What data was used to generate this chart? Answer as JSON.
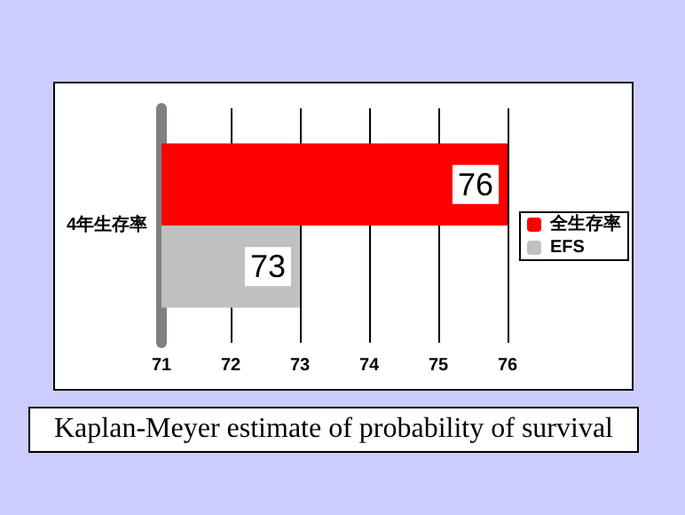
{
  "chart_data": {
    "type": "bar",
    "orientation": "horizontal",
    "categories": [
      "4年生存率"
    ],
    "series": [
      {
        "name": "全生存率",
        "color": "#ff0000",
        "values": [
          76
        ]
      },
      {
        "name": "EFS",
        "color": "#c0c0c0",
        "values": [
          73
        ]
      }
    ],
    "xlim": [
      71,
      76
    ],
    "xticks": [
      71,
      72,
      73,
      74,
      75,
      76
    ],
    "grid": "x",
    "legend": "right",
    "data_labels": true,
    "annotations": [
      "Kaplan-Meyer estimate of probability of survival"
    ]
  }
}
